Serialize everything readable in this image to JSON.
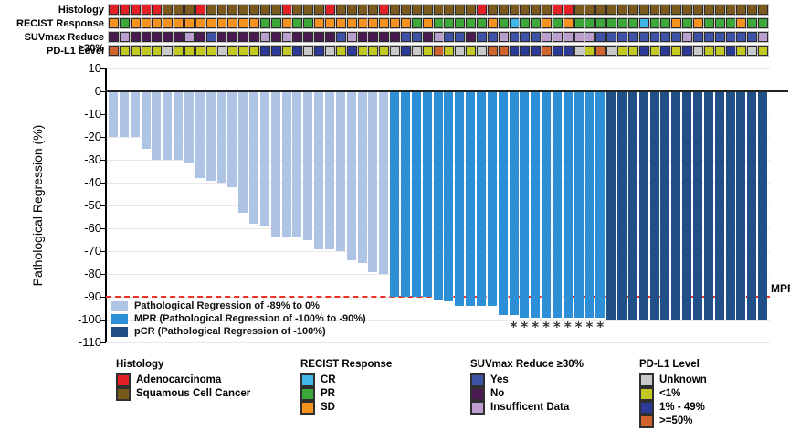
{
  "tracks": {
    "labels": [
      "Histology",
      "RECIST Response",
      "SUVmax Reduce ≥30%",
      "PD-L1 Level"
    ]
  },
  "axis": {
    "title": "Pathological Regression (%)",
    "yticks": [
      10,
      0,
      -10,
      -20,
      -30,
      -40,
      -50,
      -60,
      -70,
      -80,
      -90,
      -100,
      -110
    ]
  },
  "mpr_line": {
    "label": "MPR",
    "value": -90
  },
  "plot_legend": [
    {
      "label": "Pathological Regression of -89% to 0%",
      "color": "#afc4e4"
    },
    {
      "label": "MPR (Pathological Regression of -100% to -90%)",
      "color": "#2d8fd5"
    },
    {
      "label": "pCR (Pathological Regression of -100%)",
      "color": "#215089"
    }
  ],
  "bottom_legend": [
    {
      "title": "Histology",
      "items": [
        {
          "label": "Adenocarcinoma",
          "color": "#e32026"
        },
        {
          "label": "Squamous Cell Cancer",
          "color": "#7a591d"
        }
      ]
    },
    {
      "title": "RECIST Response",
      "items": [
        {
          "label": "CR",
          "color": "#41b6e9"
        },
        {
          "label": "PR",
          "color": "#3ca83a"
        },
        {
          "label": "SD",
          "color": "#f6921e"
        }
      ]
    },
    {
      "title": "SUVmax Reduce ≥30%",
      "items": [
        {
          "label": "Yes",
          "color": "#3e53a5"
        },
        {
          "label": "No",
          "color": "#4b1a52"
        },
        {
          "label": "Insufficent Data",
          "color": "#bb9fcc"
        }
      ]
    },
    {
      "title": "PD-L1 Level",
      "items": [
        {
          "label": "Unknown",
          "color": "#c9c9c9"
        },
        {
          "label": "<1%",
          "color": "#c3c822"
        },
        {
          "label": "1% - 49%",
          "color": "#2c3b99"
        },
        {
          "label": ">=50%",
          "color": "#d3632c"
        }
      ]
    }
  ],
  "chart_data": {
    "type": "bar",
    "title": "",
    "xlabel": "",
    "ylabel": "Pathological Regression (%)",
    "ylim": [
      -110,
      10
    ],
    "yticks": [
      10,
      0,
      -10,
      -20,
      -30,
      -40,
      -50,
      -60,
      -70,
      -80,
      -90,
      -100,
      -110
    ],
    "grid": true,
    "mpr_threshold": -90,
    "n_patients": 61,
    "values": [
      -20,
      -20,
      -20,
      -25,
      -30,
      -30,
      -30,
      -31,
      -38,
      -39,
      -40,
      -42,
      -53,
      -58,
      -59,
      -64,
      -64,
      -64,
      -65,
      -69,
      -69,
      -70,
      -74,
      -75,
      -79,
      -80,
      -90,
      -90,
      -90,
      -90,
      -91,
      -92,
      -94,
      -94,
      -94,
      -94,
      -98,
      -98,
      -99,
      -99,
      -99,
      -99,
      -99,
      -99,
      -99,
      -99,
      -100,
      -100,
      -100,
      -100,
      -100,
      -100,
      -100,
      -100,
      -100,
      -100,
      -100,
      -100,
      -100,
      -100,
      -100
    ],
    "asterisk_bars_1indexed": [
      38,
      39,
      40,
      41,
      42,
      43,
      44,
      45,
      46
    ],
    "bar_groups": {
      "light": "Pathological Regression of -89% to 0%",
      "mpr": "MPR (Pathological Regression of -100% to -90%)",
      "pcr": "pCR (Pathological Regression of -100%)"
    },
    "bar_colors": {
      "light": "#afc4e4",
      "mpr": "#2d8fd5",
      "pcr": "#215089"
    },
    "tracks": {
      "histology": [
        "A",
        "A",
        "A",
        "A",
        "A",
        "S",
        "S",
        "S",
        "A",
        "S",
        "S",
        "S",
        "S",
        "S",
        "S",
        "S",
        "A",
        "S",
        "S",
        "S",
        "A",
        "S",
        "S",
        "S",
        "S",
        "A",
        "S",
        "S",
        "S",
        "S",
        "S",
        "S",
        "S",
        "S",
        "A",
        "S",
        "S",
        "S",
        "S",
        "S",
        "S",
        "A",
        "A",
        "S",
        "S",
        "S",
        "S",
        "S",
        "S",
        "S",
        "S",
        "S",
        "S",
        "S",
        "S",
        "S",
        "S",
        "S",
        "S",
        "S",
        "S"
      ],
      "recist": [
        "SD",
        "PR",
        "SD",
        "SD",
        "SD",
        "SD",
        "SD",
        "SD",
        "SD",
        "SD",
        "SD",
        "SD",
        "SD",
        "SD",
        "PR",
        "PR",
        "SD",
        "PR",
        "PR",
        "SD",
        "SD",
        "SD",
        "SD",
        "SD",
        "SD",
        "SD",
        "SD",
        "SD",
        "PR",
        "SD",
        "PR",
        "PR",
        "PR",
        "PR",
        "PR",
        "SD",
        "PR",
        "CR",
        "PR",
        "PR",
        "SD",
        "PR",
        "SD",
        "PR",
        "PR",
        "PR",
        "PR",
        "PR",
        "PR",
        "CR",
        "PR",
        "PR",
        "SD",
        "PR",
        "SD",
        "PR",
        "PR",
        "PR",
        "SD",
        "PR",
        "PR"
      ],
      "suvmax": [
        "N",
        "I",
        "N",
        "N",
        "N",
        "N",
        "N",
        "I",
        "N",
        "Y",
        "N",
        "N",
        "N",
        "N",
        "I",
        "N",
        "I",
        "N",
        "N",
        "N",
        "N",
        "Y",
        "I",
        "N",
        "N",
        "N",
        "N",
        "Y",
        "Y",
        "N",
        "I",
        "Y",
        "Y",
        "N",
        "Y",
        "Y",
        "I",
        "Y",
        "Y",
        "Y",
        "I",
        "I",
        "I",
        "I",
        "I",
        "Y",
        "Y",
        "Y",
        "Y",
        "Y",
        "Y",
        "Y",
        "Y",
        "I",
        "Y",
        "Y",
        "Y",
        "Y",
        "Y",
        "Y",
        "I"
      ],
      "pdl1": [
        "H",
        "L",
        "L",
        "L",
        "L",
        "U",
        "L",
        "L",
        "L",
        "L",
        "U",
        "L",
        "L",
        "L",
        "M",
        "M",
        "L",
        "M",
        "U",
        "M",
        "U",
        "L",
        "M",
        "L",
        "L",
        "L",
        "U",
        "M",
        "U",
        "L",
        "H",
        "L",
        "U",
        "L",
        "U",
        "H",
        "H",
        "M",
        "M",
        "M",
        "H",
        "M",
        "M",
        "U",
        "L",
        "H",
        "U",
        "L",
        "L",
        "M",
        "L",
        "M",
        "L",
        "M",
        "U",
        "L",
        "L",
        "M",
        "L",
        "U",
        "L"
      ]
    },
    "track_codes": {
      "histology": {
        "A": "Adenocarcinoma",
        "S": "Squamous Cell Cancer"
      },
      "recist": {
        "CR": "CR",
        "PR": "PR",
        "SD": "SD"
      },
      "suvmax": {
        "Y": "Yes",
        "N": "No",
        "I": "Insufficent Data"
      },
      "pdl1": {
        "U": "Unknown",
        "L": "<1%",
        "M": "1% - 49%",
        "H": ">=50%"
      }
    },
    "track_colors": {
      "A": "#e32026",
      "S": "#7a591d",
      "SD": "#f6921e",
      "PR": "#3ca83a",
      "CR": "#41b6e9",
      "Y": "#3e53a5",
      "N": "#4b1a52",
      "I": "#bb9fcc",
      "U": "#c9c9c9",
      "L": "#c3c822",
      "M": "#2c3b99",
      "H": "#d3632c"
    }
  }
}
